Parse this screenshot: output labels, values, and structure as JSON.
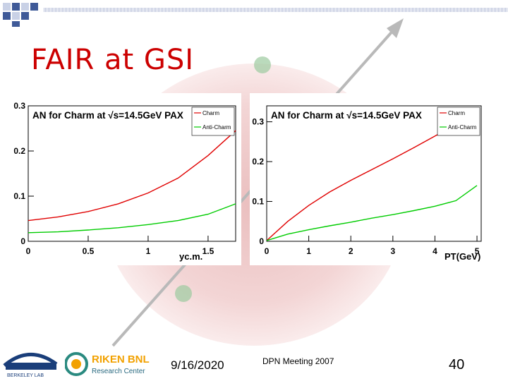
{
  "slide": {
    "title": "FAIR at GSI",
    "footer_date": "9/16/2020",
    "footer_meeting": "DPN Meeting 2007",
    "page_number": "40",
    "logo_left_text": "BERKELEY LAB",
    "logo_right_title": "RIKEN BNL",
    "logo_right_subtitle": "Research Center"
  },
  "colors": {
    "title": "#cc0000",
    "charm": "#e00000",
    "anti_charm": "#00cc00",
    "sq_dark": "#3f5a98",
    "sq_light": "#c9d1e6"
  },
  "chart_data": [
    {
      "type": "line",
      "title": "AN for Charm at √s=14.5GeV PAX",
      "xlabel": "yc.m.",
      "ylabel": "",
      "xlim": [
        0,
        1.73
      ],
      "ylim": [
        0,
        0.3
      ],
      "x_ticks": [
        "0",
        "0.5",
        "1",
        "1.5"
      ],
      "y_ticks": [
        "0",
        "0.1",
        "0.2",
        "0.3"
      ],
      "legend": "top-right",
      "series": [
        {
          "name": "Charm",
          "color": "#e00000",
          "x": [
            0,
            0.25,
            0.5,
            0.75,
            1.0,
            1.25,
            1.5,
            1.73
          ],
          "y": [
            0.046,
            0.054,
            0.066,
            0.083,
            0.107,
            0.14,
            0.19,
            0.245
          ]
        },
        {
          "name": "Anti-Charm",
          "color": "#00cc00",
          "x": [
            0,
            0.25,
            0.5,
            0.75,
            1.0,
            1.25,
            1.5,
            1.73
          ],
          "y": [
            0.019,
            0.021,
            0.025,
            0.03,
            0.037,
            0.046,
            0.06,
            0.083
          ]
        }
      ]
    },
    {
      "type": "line",
      "title": "AN for Charm at √s=14.5GeV PAX",
      "xlabel": "PT(GeV)",
      "ylabel": "",
      "xlim": [
        0,
        5.1
      ],
      "ylim": [
        0,
        0.34
      ],
      "x_ticks": [
        "0",
        "1",
        "2",
        "3",
        "4",
        "5"
      ],
      "y_ticks": [
        "0",
        "0.1",
        "0.2",
        "0.3"
      ],
      "legend": "top-right",
      "series": [
        {
          "name": "Charm",
          "color": "#e00000",
          "x": [
            0,
            0.5,
            1,
            1.5,
            2,
            2.5,
            3,
            3.5,
            4,
            4.5,
            5
          ],
          "y": [
            0.002,
            0.05,
            0.09,
            0.124,
            0.153,
            0.18,
            0.207,
            0.235,
            0.264,
            0.294,
            0.328
          ]
        },
        {
          "name": "Anti-Charm",
          "color": "#00cc00",
          "x": [
            0,
            0.5,
            1,
            1.5,
            2,
            2.5,
            3,
            3.5,
            4,
            4.5,
            5
          ],
          "y": [
            0.002,
            0.018,
            0.029,
            0.039,
            0.048,
            0.058,
            0.067,
            0.077,
            0.088,
            0.102,
            0.14
          ]
        }
      ]
    }
  ]
}
